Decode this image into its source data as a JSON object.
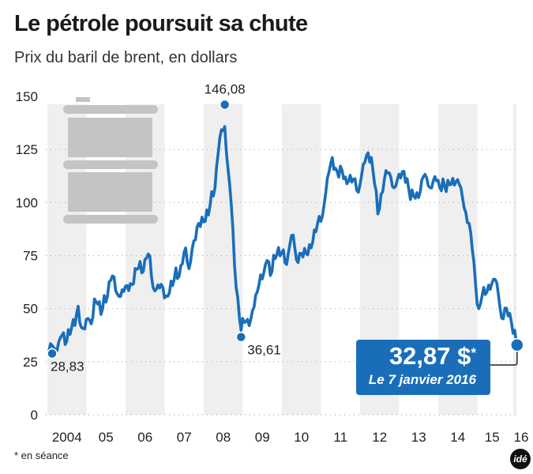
{
  "header": {
    "title": "Le pétrole poursuit sa chute",
    "subtitle": "Prix du baril de brent, en dollars"
  },
  "footer": {
    "note": "* en séance",
    "logo": "idé"
  },
  "colors": {
    "line": "#1a6eb9",
    "band": "#efefef",
    "grid": "#aaaaaa",
    "barrel": "#c4c4c4"
  },
  "icons": [
    "oil-barrel-icon"
  ],
  "callout": {
    "value": "32,87 $",
    "asterisk": "*",
    "date": "Le 7 janvier 2016"
  },
  "chart_data": {
    "type": "line",
    "title": "Le pétrole poursuit sa chute",
    "ylabel": "",
    "xlabel": "",
    "ylim": [
      0,
      150
    ],
    "yticks": [
      "0",
      "25",
      "50",
      "75",
      "100",
      "125",
      "150"
    ],
    "xticks": [
      "2004",
      "05",
      "06",
      "07",
      "08",
      "09",
      "10",
      "11",
      "12",
      "13",
      "14",
      "15",
      "16"
    ],
    "grid": "horizontal dotted",
    "x_start": "2004-01",
    "x_end": "2016-01",
    "values_monthly_from_2004_01": [
      30,
      31,
      33,
      33,
      37,
      35,
      38,
      42,
      43,
      49,
      43,
      40,
      44,
      45,
      53,
      52,
      49,
      54,
      57,
      64,
      63,
      59,
      55,
      57,
      63,
      60,
      62,
      70,
      70,
      69,
      74,
      73,
      62,
      58,
      59,
      62,
      54,
      58,
      62,
      67,
      67,
      71,
      77,
      71,
      77,
      82,
      92,
      91,
      92,
      95,
      103,
      109,
      123,
      133,
      138,
      114,
      99,
      72,
      53,
      41,
      44,
      43,
      47,
      50,
      57,
      68,
      65,
      73,
      67,
      73,
      77,
      75,
      76,
      73,
      79,
      84,
      75,
      74,
      75,
      77,
      78,
      83,
      86,
      92,
      96,
      103,
      114,
      123,
      114,
      113,
      116,
      110,
      112,
      109,
      110,
      107,
      111,
      119,
      125,
      119,
      110,
      95,
      102,
      113,
      113,
      111,
      109,
      109,
      112,
      116,
      109,
      103,
      103,
      103,
      107,
      111,
      111,
      109,
      108,
      111,
      108,
      109,
      107,
      108,
      110,
      112,
      107,
      102,
      97,
      88,
      79,
      62,
      48,
      58,
      56,
      60,
      64,
      62,
      57,
      47,
      48,
      48,
      44,
      38,
      32.87
    ],
    "annotations": [
      {
        "x": "2004-02",
        "y": 28.83,
        "label": "28,83"
      },
      {
        "x": "2008-07",
        "y": 146.08,
        "label": "146,08"
      },
      {
        "x": "2008-12",
        "y": 36.61,
        "label": "36,61"
      },
      {
        "x": "2016-01-07",
        "y": 32.87,
        "label": "32,87 $*"
      }
    ]
  }
}
